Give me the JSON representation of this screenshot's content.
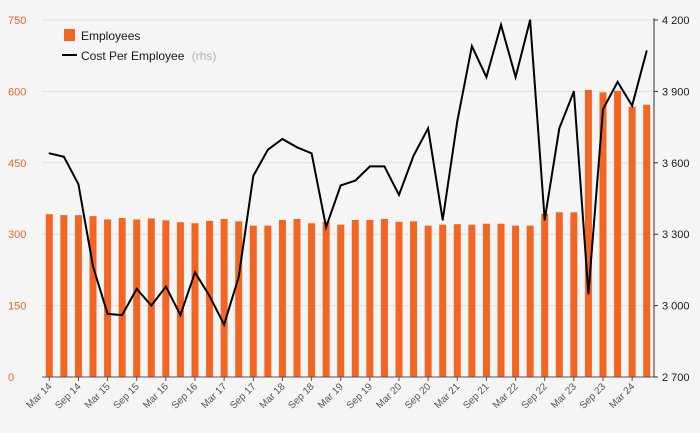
{
  "chart_data": {
    "type": "bar+line",
    "title": "",
    "legend": {
      "position": "top-left",
      "entries": [
        {
          "name": "Employees",
          "marker": "bar",
          "color": "#f26522"
        },
        {
          "name": "Cost Per Employee",
          "note": "(rhs)",
          "marker": "line",
          "color": "#000000"
        }
      ]
    },
    "categories": [
      "Mar 14",
      "Jun 14",
      "Sep 14",
      "Dec 14",
      "Mar 15",
      "Jun 15",
      "Sep 15",
      "Dec 15",
      "Mar 16",
      "Jun 16",
      "Sep 16",
      "Dec 16",
      "Mar 17",
      "Jun 17",
      "Sep 17",
      "Dec 17",
      "Mar 18",
      "Jun 18",
      "Sep 18",
      "Dec 18",
      "Mar 19",
      "Jun 19",
      "Sep 19",
      "Dec 19",
      "Mar 20",
      "Jun 20",
      "Sep 20",
      "Dec 20",
      "Mar 21",
      "Jun 21",
      "Sep 21",
      "Dec 21",
      "Mar 22",
      "Jun 22",
      "Sep 22",
      "Dec 22",
      "Mar 23",
      "Jun 23",
      "Sep 23",
      "Dec 23",
      "Mar 24",
      "Jun 24"
    ],
    "x_tick_labels": [
      "Mar 14",
      "Sep 14",
      "Mar 15",
      "Sep 15",
      "Mar 16",
      "Sep 16",
      "Mar 17",
      "Sep 17",
      "Mar 18",
      "Sep 18",
      "Mar 19",
      "Sep 19",
      "Mar 20",
      "Sep 20",
      "Mar 21",
      "Sep 21",
      "Mar 22",
      "Sep 22",
      "Mar 23",
      "Sep 23",
      "Mar 24"
    ],
    "series": [
      {
        "name": "Employees",
        "type": "bar",
        "axis": "left",
        "color": "#f26522",
        "values": [
          342,
          340,
          340,
          338,
          331,
          334,
          331,
          333,
          329,
          325,
          323,
          328,
          332,
          327,
          318,
          318,
          330,
          332,
          323,
          326,
          320,
          330,
          330,
          332,
          326,
          327,
          318,
          320,
          321,
          320,
          322,
          322,
          318,
          318,
          343,
          346,
          346,
          603,
          598,
          601,
          568,
          572
        ]
      },
      {
        "name": "Cost Per Employee",
        "type": "line",
        "axis": "right",
        "color": "#000000",
        "values": [
          3640,
          3625,
          3510,
          3165,
          2965,
          2960,
          3070,
          3000,
          3080,
          2960,
          3140,
          3040,
          2920,
          3120,
          3545,
          3655,
          3700,
          3665,
          3640,
          3330,
          3505,
          3525,
          3585,
          3585,
          3465,
          3630,
          3745,
          3360,
          3775,
          4090,
          3960,
          4180,
          3960,
          4200,
          3360,
          3745,
          3900,
          3050,
          3825,
          3940,
          3840,
          4070
        ]
      }
    ],
    "y_left": {
      "min": 0,
      "max": 750,
      "ticks": [
        0,
        150,
        300,
        450,
        600,
        750
      ],
      "tick_labels": [
        "0",
        "150",
        "300",
        "450",
        "600",
        "750"
      ]
    },
    "y_right": {
      "min": 2700,
      "max": 4200,
      "ticks": [
        2700,
        3000,
        3300,
        3600,
        3900,
        4200
      ],
      "tick_labels": [
        "2 700",
        "3 000",
        "3 300",
        "3 600",
        "3 900",
        "4 200"
      ]
    },
    "grid": true,
    "xlabel": "",
    "ylabel": ""
  }
}
